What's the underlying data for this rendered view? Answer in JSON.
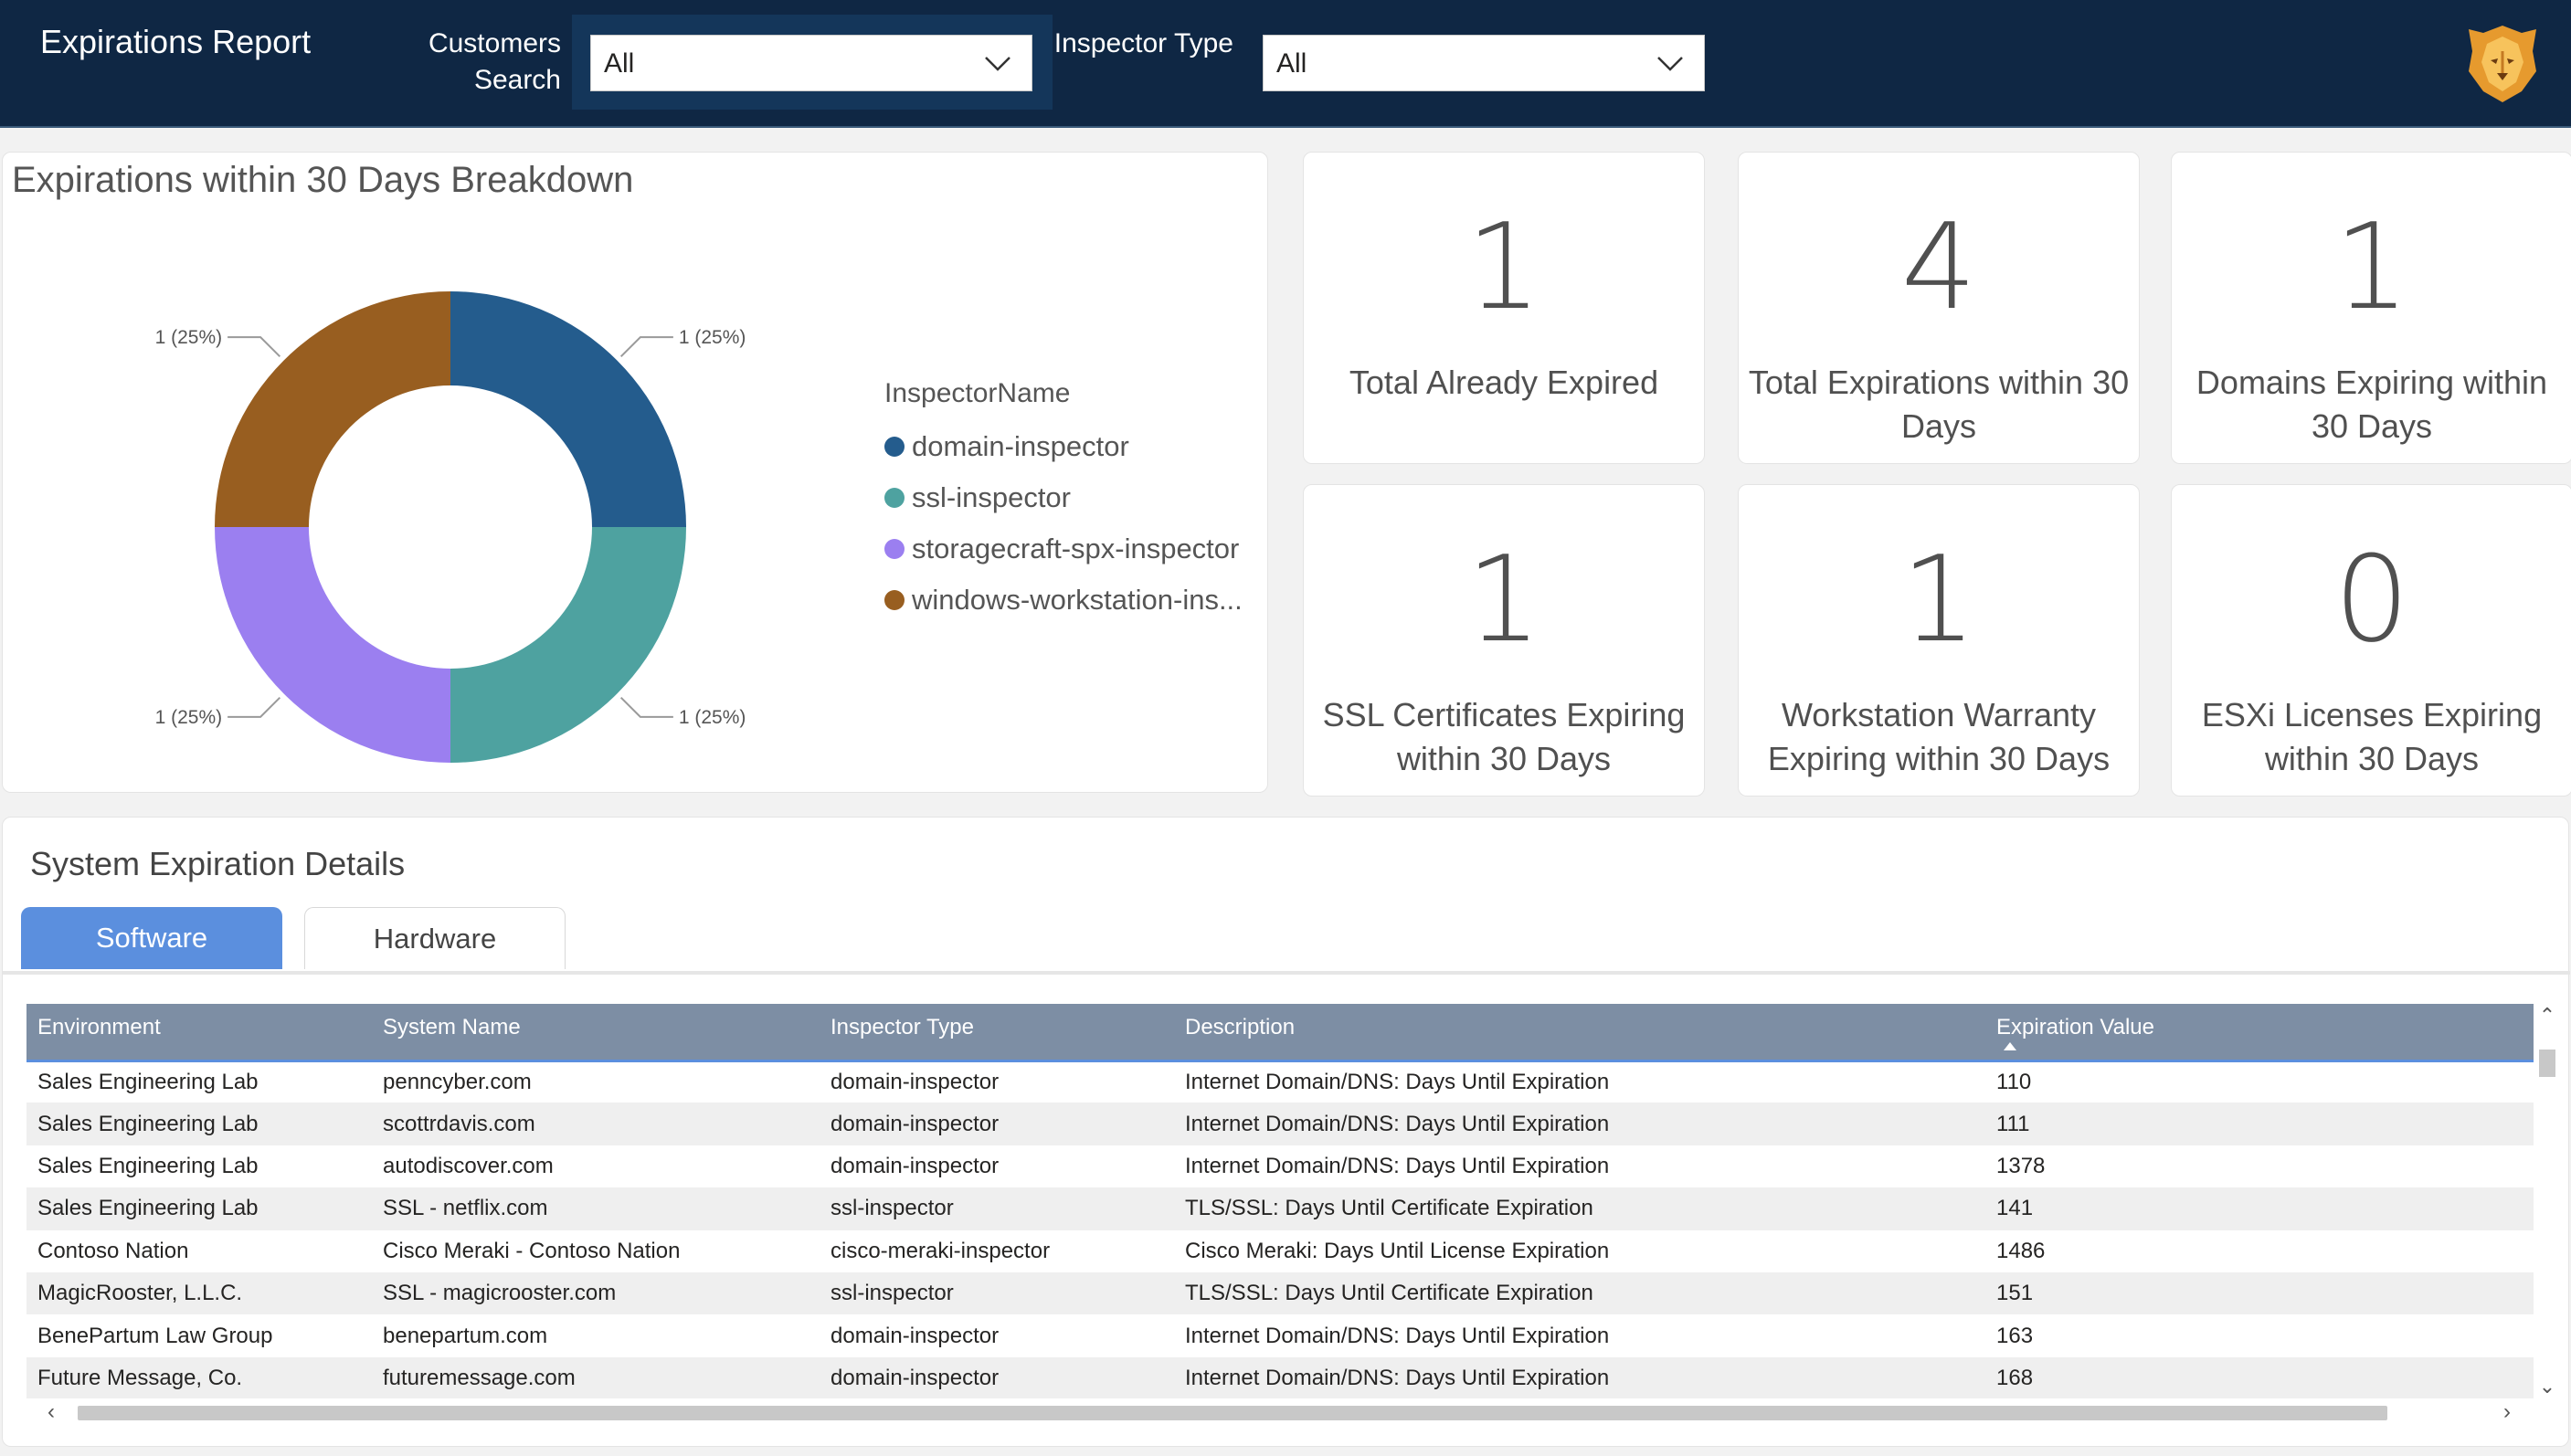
{
  "header": {
    "title": "Expirations Report",
    "customers_label": "Customers Search",
    "customers_value": "All",
    "inspector_label": "Inspector Type",
    "inspector_value": "All",
    "logo_icon": "lion-logo-icon",
    "dropdown_icon": "chevron-down-icon"
  },
  "breakdown": {
    "title": "Expirations within 30 Days Breakdown",
    "legend_title": "InspectorName",
    "legend": [
      {
        "label": "domain-inspector",
        "color": "#245c8d"
      },
      {
        "label": "ssl-inspector",
        "color": "#4ea2a0"
      },
      {
        "label": "storagecraft-spx-inspector",
        "color": "#9b7ff0"
      },
      {
        "label": "windows-workstation-ins...",
        "color": "#985e20"
      }
    ]
  },
  "chart_data": {
    "type": "pie",
    "categories": [
      "domain-inspector",
      "ssl-inspector",
      "storagecraft-spx-inspector",
      "windows-workstation-ins..."
    ],
    "values": [
      1,
      1,
      1,
      1
    ],
    "data_labels": [
      "1 (25%)",
      "1 (25%)",
      "1 (25%)",
      "1 (25%)"
    ],
    "colors": [
      "#245c8d",
      "#4ea2a0",
      "#9b7ff0",
      "#985e20"
    ],
    "title": "Expirations within 30 Days Breakdown",
    "legend_title": "InspectorName",
    "legend": "right"
  },
  "kpis": [
    {
      "value": "1",
      "label": "Total Already Expired"
    },
    {
      "value": "4",
      "label": "Total Expirations within 30 Days"
    },
    {
      "value": "1",
      "label": "Domains Expiring within 30 Days"
    },
    {
      "value": "1",
      "label": "SSL Certificates Expiring within 30 Days"
    },
    {
      "value": "1",
      "label": "Workstation  Warranty Expiring within 30 Days"
    },
    {
      "value": "0",
      "label": "ESXi Licenses  Expiring within 30 Days"
    }
  ],
  "details": {
    "title": "System Expiration Details",
    "tabs": [
      {
        "label": "Software"
      },
      {
        "label": "Hardware"
      }
    ],
    "columns": [
      "Environment",
      "System Name",
      "Inspector Type",
      "Description",
      "Expiration Value"
    ],
    "rows": [
      [
        "Sales Engineering Lab",
        "penncyber.com",
        "domain-inspector",
        "Internet Domain/DNS: Days Until Expiration",
        "110"
      ],
      [
        "Sales Engineering Lab",
        "scottrdavis.com",
        "domain-inspector",
        "Internet Domain/DNS: Days Until Expiration",
        "111"
      ],
      [
        "Sales Engineering Lab",
        "autodiscover.com",
        "domain-inspector",
        "Internet Domain/DNS: Days Until Expiration",
        "1378"
      ],
      [
        "Sales Engineering Lab",
        "SSL - netflix.com",
        "ssl-inspector",
        "TLS/SSL: Days Until Certificate Expiration",
        "141"
      ],
      [
        "Contoso Nation",
        "Cisco Meraki - Contoso Nation",
        "cisco-meraki-inspector",
        "Cisco Meraki: Days Until License Expiration",
        "1486"
      ],
      [
        "MagicRooster, L.L.C.",
        "SSL - magicrooster.com",
        "ssl-inspector",
        "TLS/SSL: Days Until Certificate Expiration",
        "151"
      ],
      [
        "BenePartum Law Group",
        "benepartum.com",
        "domain-inspector",
        "Internet Domain/DNS: Days Until Expiration",
        "163"
      ],
      [
        "Future Message, Co.",
        "futuremessage.com",
        "domain-inspector",
        "Internet Domain/DNS: Days Until Expiration",
        "168"
      ]
    ]
  }
}
